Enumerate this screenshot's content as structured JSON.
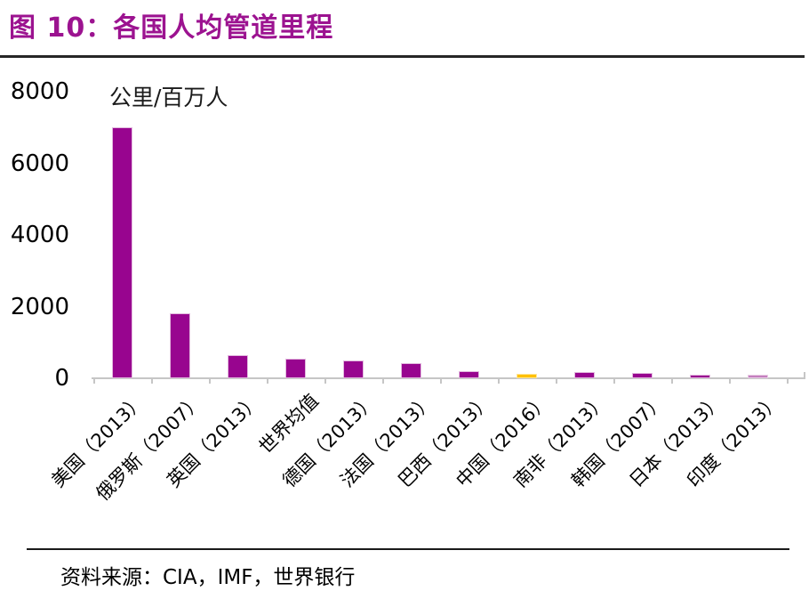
{
  "header": {
    "title": "图 10：各国人均管道里程"
  },
  "chart_data": {
    "type": "bar",
    "title": "各国人均管道里程",
    "figure_label": "图 10",
    "unit_label": "公里/百万人",
    "categories": [
      "美国（2013）",
      "俄罗斯（2007）",
      "英国（2013）",
      "世界均值",
      "德国（2013）",
      "法国（2013）",
      "巴西（2013）",
      "中国（2016）",
      "南非（2013）",
      "韩国（2007）",
      "日本（2013）",
      "印度（2013）"
    ],
    "values": [
      7000,
      1815,
      635,
      545,
      485,
      420,
      200,
      130,
      165,
      140,
      105,
      90
    ],
    "yticks": [
      0,
      2000,
      4000,
      6000,
      8000
    ],
    "ylim": [
      0,
      8000
    ],
    "grid": false,
    "legend": false,
    "bar_colors": [
      "#98058F",
      "#98058F",
      "#98058F",
      "#98058F",
      "#98058F",
      "#98058F",
      "#98058F",
      "#FFC000",
      "#98058F",
      "#98058F",
      "#98058F",
      "#C47FBE"
    ],
    "bar_border_colors": [
      "#E2BADE",
      "#E2BADE",
      "#E2BADE",
      "#E2BADE",
      "#E2BADE",
      "#E2BADE",
      "#E2BADE",
      "#FFE699",
      "#E2BADE",
      "#E2BADE",
      "#E2BADE",
      "#E8CCE5"
    ],
    "axis_color": "#C6C6C6"
  },
  "footer": {
    "source": "资料来源：CIA，IMF，世界银行"
  }
}
